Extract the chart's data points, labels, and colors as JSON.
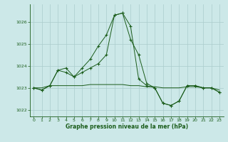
{
  "xlabel": "Graphe pression niveau de la mer (hPa)",
  "background_color": "#cce8e8",
  "grid_color": "#aacccc",
  "line_color": "#1a5c1a",
  "ylim": [
    1021.7,
    1026.8
  ],
  "xlim": [
    -0.5,
    23.5
  ],
  "yticks": [
    1022,
    1023,
    1024,
    1025,
    1026
  ],
  "xticks": [
    0,
    1,
    2,
    3,
    4,
    5,
    6,
    7,
    8,
    9,
    10,
    11,
    12,
    13,
    14,
    15,
    16,
    17,
    18,
    19,
    20,
    21,
    22,
    23
  ],
  "series_main": [
    1023.0,
    1022.9,
    1023.1,
    1023.8,
    1023.9,
    1023.5,
    1023.9,
    1024.3,
    1024.9,
    1025.4,
    1026.3,
    1026.4,
    1025.2,
    1024.5,
    1023.2,
    1023.0,
    1022.3,
    1022.2,
    1022.4,
    1023.1,
    1023.1,
    1023.0,
    1023.0,
    1022.8
  ],
  "series_flat": [
    1023.0,
    1023.0,
    1023.1,
    1023.1,
    1023.1,
    1023.1,
    1023.1,
    1023.15,
    1023.15,
    1023.15,
    1023.15,
    1023.15,
    1023.1,
    1023.1,
    1023.05,
    1023.05,
    1023.0,
    1023.0,
    1023.0,
    1023.05,
    1023.05,
    1023.0,
    1023.0,
    1022.9
  ],
  "series_mid": [
    1023.0,
    1022.9,
    1023.1,
    1023.8,
    1023.7,
    1023.5,
    1023.7,
    1023.9,
    1024.1,
    1024.5,
    1026.3,
    1026.4,
    1025.8,
    1023.4,
    1023.1,
    1023.0,
    1022.3,
    1022.2,
    1022.4,
    1023.1,
    1023.1,
    1023.0,
    1023.0,
    1022.8
  ]
}
